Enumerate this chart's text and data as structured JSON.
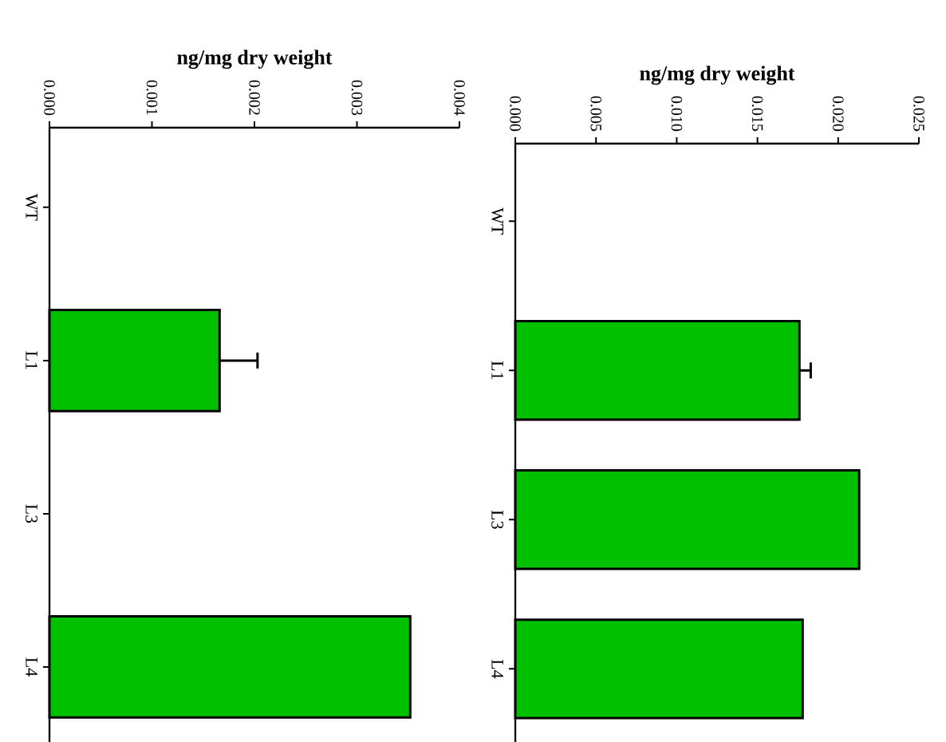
{
  "chart_data": [
    {
      "type": "bar",
      "orientation": "horizontal",
      "xlabel": "ng/mg dry weight",
      "categories": [
        "WT",
        "L1",
        "L3",
        "L4"
      ],
      "values": [
        null,
        0.00166,
        null,
        0.00352
      ],
      "errors": [
        null,
        0.00037,
        null,
        null
      ],
      "color": "#00c000",
      "xlim": [
        0,
        0.004
      ],
      "xticks": [
        {
          "value": 0,
          "label": "0.000"
        },
        {
          "value": 0.001,
          "label": "0.001"
        },
        {
          "value": 0.002,
          "label": "0.002"
        },
        {
          "value": 0.003,
          "label": "0.003"
        },
        {
          "value": 0.004,
          "label": "0.004"
        }
      ]
    },
    {
      "type": "bar",
      "orientation": "horizontal",
      "xlabel": "ng/mg dry weight",
      "categories": [
        "WT",
        "L1",
        "L3",
        "L4"
      ],
      "values": [
        null,
        0.0176,
        0.0213,
        0.0178
      ],
      "errors": [
        null,
        0.0007,
        null,
        null
      ],
      "color": "#00c000",
      "xlim": [
        0,
        0.025
      ],
      "xticks": [
        {
          "value": 0,
          "label": "0.000"
        },
        {
          "value": 0.005,
          "label": "0.005"
        },
        {
          "value": 0.01,
          "label": "0.010"
        },
        {
          "value": 0.015,
          "label": "0.015"
        },
        {
          "value": 0.02,
          "label": "0.020"
        },
        {
          "value": 0.025,
          "label": "0.025"
        }
      ]
    }
  ]
}
